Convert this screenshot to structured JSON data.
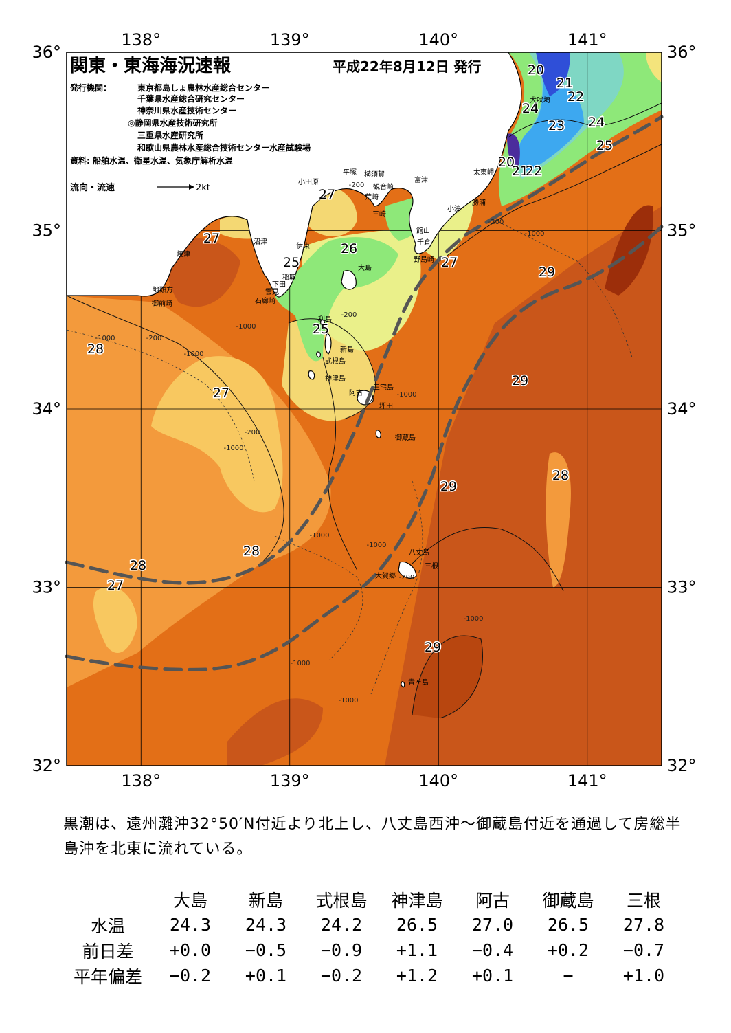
{
  "title": "関東・東海海況速報",
  "issue_date": "平成22年8月12日 発行",
  "issuer_label": "発行機関：",
  "issuers": [
    "東京都島しょ農林水産総合センター",
    "千葉県水産総合研究センター",
    "神奈川県水産技術センター",
    "◎静岡県水産技術研究所",
    "三重県水産研究所",
    "和歌山県農林水産総合技術センター水産試験場"
  ],
  "sources": "資料: 船舶水温、衛星水温、気象庁解析水温",
  "flow_legend": {
    "label": "流向・流速",
    "unit": "2kt"
  },
  "axes": {
    "lon_ticks": [
      "138°",
      "139°",
      "140°",
      "141°"
    ],
    "lat_ticks": [
      "36°",
      "35°",
      "34°",
      "33°",
      "32°"
    ],
    "lon_range": [
      137.5,
      141.5
    ],
    "lat_range": [
      32.0,
      36.0
    ]
  },
  "colors": {
    "sea_warm": "#e36f17",
    "sea_hot": "#c2500f",
    "sea_mid": "#f39a3c",
    "sea_cool": "#f8c860",
    "sea_cooler": "#f4e47c",
    "sea_cold": "#8ee879",
    "kuroshio": "#555555"
  },
  "isotherm_labels": [
    "20",
    "21",
    "22",
    "24",
    "23",
    "24",
    "25",
    "20",
    "21",
    "22",
    "27",
    "27",
    "26",
    "25",
    "27",
    "29",
    "28",
    "25",
    "27",
    "29",
    "28",
    "29",
    "28",
    "28",
    "27",
    "29"
  ],
  "place_names": [
    "小田原",
    "平塚",
    "横須賀",
    "観音崎",
    "荒崎",
    "三崎",
    "富津",
    "小湊",
    "勝浦",
    "太東岬",
    "犬吠埼",
    "館山",
    "千倉",
    "野島崎",
    "沼津",
    "焼津",
    "伊東",
    "稲取",
    "下田",
    "雲見",
    "石廊崎",
    "地頭方",
    "御前崎",
    "大島",
    "利島",
    "新島",
    "式根島",
    "神津島",
    "三宅島",
    "阿古",
    "坪田",
    "御蔵島",
    "八丈島",
    "三根",
    "大賀郷",
    "青ヶ島"
  ],
  "depth_labels": [
    "-200",
    "-1000"
  ],
  "description": "黒潮は、遠州灘沖32°50′N付近より北上し、八丈島西沖～御蔵島付近を通過して房総半島沖を北東に流れている。",
  "stats": {
    "islands": [
      "大島",
      "新島",
      "式根島",
      "神津島",
      "阿古",
      "御蔵島",
      "三根"
    ],
    "rows": [
      {
        "label": "水温",
        "values": [
          "24.3",
          "24.3",
          "24.2",
          "26.5",
          "27.0",
          "26.5",
          "27.8"
        ]
      },
      {
        "label": "前日差",
        "values": [
          "+0.0",
          "−0.5",
          "−0.9",
          "+1.1",
          "−0.4",
          "+0.2",
          "−0.7"
        ]
      },
      {
        "label": "平年偏差",
        "values": [
          "−0.2",
          "+0.1",
          "−0.2",
          "+1.2",
          "+0.1",
          "−",
          "+1.0"
        ]
      }
    ]
  }
}
